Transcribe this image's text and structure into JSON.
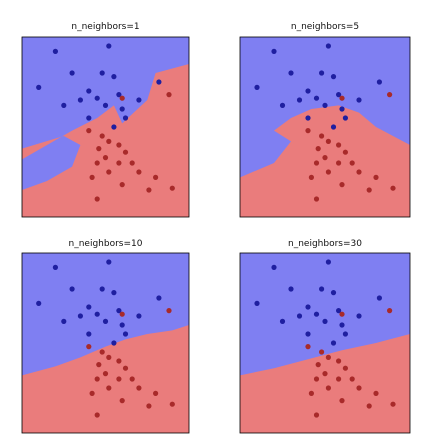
{
  "colors": {
    "class_a_region": "#7f7ff2",
    "class_b_region": "#ea7c7c",
    "class_a_point": "#1f1fa0",
    "class_b_point": "#a82a2a"
  },
  "chart_data": [
    {
      "type": "scatter",
      "title": "n_neighbors=1",
      "xlim": [
        0,
        1
      ],
      "ylim": [
        0,
        1
      ],
      "grid": false,
      "decision_boundary": [
        [
          0,
          0.15
        ],
        [
          0.15,
          0.2
        ],
        [
          0.3,
          0.28
        ],
        [
          0.35,
          0.4
        ],
        [
          0.25,
          0.45
        ],
        [
          0,
          0.38
        ],
        [
          0,
          0.32
        ],
        [
          0.3,
          0.48
        ],
        [
          0.45,
          0.55
        ],
        [
          0.55,
          0.62
        ],
        [
          0.6,
          0.52
        ],
        [
          0.75,
          0.65
        ],
        [
          0.8,
          0.8
        ],
        [
          1,
          0.85
        ],
        [
          1,
          0
        ]
      ],
      "series": [
        {
          "class": "a",
          "points": [
            [
              0.2,
              0.92
            ],
            [
              0.52,
              0.95
            ],
            [
              0.1,
              0.72
            ],
            [
              0.48,
              0.8
            ],
            [
              0.55,
              0.78
            ],
            [
              0.82,
              0.75
            ],
            [
              0.3,
              0.8
            ],
            [
              0.4,
              0.7
            ],
            [
              0.5,
              0.62
            ],
            [
              0.6,
              0.6
            ],
            [
              0.45,
              0.66
            ],
            [
              0.35,
              0.65
            ],
            [
              0.58,
              0.68
            ],
            [
              0.7,
              0.65
            ],
            [
              0.25,
              0.62
            ],
            [
              0.62,
              0.55
            ],
            [
              0.4,
              0.55
            ],
            [
              0.55,
              0.5
            ]
          ]
        },
        {
          "class": "b",
          "points": [
            [
              0.6,
              0.66
            ],
            [
              0.88,
              0.68
            ],
            [
              0.4,
              0.48
            ],
            [
              0.48,
              0.45
            ],
            [
              0.52,
              0.42
            ],
            [
              0.58,
              0.4
            ],
            [
              0.46,
              0.38
            ],
            [
              0.62,
              0.36
            ],
            [
              0.5,
              0.33
            ],
            [
              0.45,
              0.3
            ],
            [
              0.58,
              0.3
            ],
            [
              0.66,
              0.3
            ],
            [
              0.52,
              0.25
            ],
            [
              0.7,
              0.25
            ],
            [
              0.42,
              0.22
            ],
            [
              0.8,
              0.22
            ],
            [
              0.6,
              0.18
            ],
            [
              0.76,
              0.15
            ],
            [
              0.9,
              0.16
            ],
            [
              0.45,
              0.1
            ]
          ]
        }
      ]
    },
    {
      "type": "scatter",
      "title": "n_neighbors=5",
      "xlim": [
        0,
        1
      ],
      "ylim": [
        0,
        1
      ],
      "grid": false,
      "decision_boundary": [
        [
          0,
          0.22
        ],
        [
          0.2,
          0.3
        ],
        [
          0.3,
          0.42
        ],
        [
          0.2,
          0.48
        ],
        [
          0.3,
          0.55
        ],
        [
          0.42,
          0.6
        ],
        [
          0.58,
          0.62
        ],
        [
          0.7,
          0.58
        ],
        [
          0.8,
          0.5
        ],
        [
          0.9,
          0.45
        ],
        [
          1,
          0.4
        ],
        [
          1,
          0
        ]
      ],
      "series": [
        {
          "class": "a",
          "points": [
            [
              0.2,
              0.92
            ],
            [
              0.52,
              0.95
            ],
            [
              0.1,
              0.72
            ],
            [
              0.48,
              0.8
            ],
            [
              0.55,
              0.78
            ],
            [
              0.82,
              0.75
            ],
            [
              0.3,
              0.8
            ],
            [
              0.4,
              0.7
            ],
            [
              0.5,
              0.62
            ],
            [
              0.6,
              0.6
            ],
            [
              0.45,
              0.66
            ],
            [
              0.35,
              0.65
            ],
            [
              0.58,
              0.68
            ],
            [
              0.7,
              0.65
            ],
            [
              0.25,
              0.62
            ],
            [
              0.62,
              0.55
            ],
            [
              0.4,
              0.55
            ],
            [
              0.55,
              0.5
            ]
          ]
        },
        {
          "class": "b",
          "points": [
            [
              0.6,
              0.66
            ],
            [
              0.88,
              0.68
            ],
            [
              0.4,
              0.48
            ],
            [
              0.48,
              0.45
            ],
            [
              0.52,
              0.42
            ],
            [
              0.58,
              0.4
            ],
            [
              0.46,
              0.38
            ],
            [
              0.62,
              0.36
            ],
            [
              0.5,
              0.33
            ],
            [
              0.45,
              0.3
            ],
            [
              0.58,
              0.3
            ],
            [
              0.66,
              0.3
            ],
            [
              0.52,
              0.25
            ],
            [
              0.7,
              0.25
            ],
            [
              0.42,
              0.22
            ],
            [
              0.8,
              0.22
            ],
            [
              0.6,
              0.18
            ],
            [
              0.76,
              0.15
            ],
            [
              0.9,
              0.16
            ],
            [
              0.45,
              0.1
            ]
          ]
        }
      ]
    },
    {
      "type": "scatter",
      "title": "n_neighbors=10",
      "xlim": [
        0,
        1
      ],
      "ylim": [
        0,
        1
      ],
      "grid": false,
      "decision_boundary": [
        [
          0,
          0.32
        ],
        [
          0.2,
          0.37
        ],
        [
          0.35,
          0.42
        ],
        [
          0.5,
          0.48
        ],
        [
          0.62,
          0.52
        ],
        [
          0.75,
          0.55
        ],
        [
          0.9,
          0.57
        ],
        [
          1,
          0.6
        ],
        [
          1,
          0
        ]
      ],
      "series": [
        {
          "class": "a",
          "points": [
            [
              0.2,
              0.92
            ],
            [
              0.52,
              0.95
            ],
            [
              0.1,
              0.72
            ],
            [
              0.48,
              0.8
            ],
            [
              0.55,
              0.78
            ],
            [
              0.82,
              0.75
            ],
            [
              0.3,
              0.8
            ],
            [
              0.4,
              0.7
            ],
            [
              0.5,
              0.62
            ],
            [
              0.6,
              0.6
            ],
            [
              0.45,
              0.66
            ],
            [
              0.35,
              0.65
            ],
            [
              0.58,
              0.68
            ],
            [
              0.7,
              0.65
            ],
            [
              0.25,
              0.62
            ],
            [
              0.62,
              0.55
            ],
            [
              0.4,
              0.55
            ],
            [
              0.55,
              0.5
            ]
          ]
        },
        {
          "class": "b",
          "points": [
            [
              0.6,
              0.66
            ],
            [
              0.88,
              0.68
            ],
            [
              0.4,
              0.48
            ],
            [
              0.48,
              0.45
            ],
            [
              0.52,
              0.42
            ],
            [
              0.58,
              0.4
            ],
            [
              0.46,
              0.38
            ],
            [
              0.62,
              0.36
            ],
            [
              0.5,
              0.33
            ],
            [
              0.45,
              0.3
            ],
            [
              0.58,
              0.3
            ],
            [
              0.66,
              0.3
            ],
            [
              0.52,
              0.25
            ],
            [
              0.7,
              0.25
            ],
            [
              0.42,
              0.22
            ],
            [
              0.8,
              0.22
            ],
            [
              0.6,
              0.18
            ],
            [
              0.76,
              0.15
            ],
            [
              0.9,
              0.16
            ],
            [
              0.45,
              0.1
            ]
          ]
        }
      ]
    },
    {
      "type": "scatter",
      "title": "n_neighbors=30",
      "xlim": [
        0,
        1
      ],
      "ylim": [
        0,
        1
      ],
      "grid": false,
      "decision_boundary": [
        [
          0,
          0.32
        ],
        [
          0.2,
          0.36
        ],
        [
          0.4,
          0.41
        ],
        [
          0.6,
          0.46
        ],
        [
          0.8,
          0.5
        ],
        [
          1,
          0.55
        ],
        [
          1,
          0
        ]
      ],
      "series": [
        {
          "class": "a",
          "points": [
            [
              0.2,
              0.92
            ],
            [
              0.52,
              0.95
            ],
            [
              0.1,
              0.72
            ],
            [
              0.48,
              0.8
            ],
            [
              0.55,
              0.78
            ],
            [
              0.82,
              0.75
            ],
            [
              0.3,
              0.8
            ],
            [
              0.4,
              0.7
            ],
            [
              0.5,
              0.62
            ],
            [
              0.6,
              0.6
            ],
            [
              0.45,
              0.66
            ],
            [
              0.35,
              0.65
            ],
            [
              0.58,
              0.68
            ],
            [
              0.7,
              0.65
            ],
            [
              0.25,
              0.62
            ],
            [
              0.62,
              0.55
            ],
            [
              0.4,
              0.55
            ],
            [
              0.55,
              0.5
            ]
          ]
        },
        {
          "class": "b",
          "points": [
            [
              0.6,
              0.66
            ],
            [
              0.88,
              0.68
            ],
            [
              0.4,
              0.48
            ],
            [
              0.48,
              0.45
            ],
            [
              0.52,
              0.42
            ],
            [
              0.58,
              0.4
            ],
            [
              0.46,
              0.38
            ],
            [
              0.62,
              0.36
            ],
            [
              0.5,
              0.33
            ],
            [
              0.45,
              0.3
            ],
            [
              0.58,
              0.3
            ],
            [
              0.66,
              0.3
            ],
            [
              0.52,
              0.25
            ],
            [
              0.7,
              0.25
            ],
            [
              0.42,
              0.22
            ],
            [
              0.8,
              0.22
            ],
            [
              0.6,
              0.18
            ],
            [
              0.76,
              0.15
            ],
            [
              0.9,
              0.16
            ],
            [
              0.45,
              0.1
            ]
          ]
        }
      ]
    }
  ]
}
